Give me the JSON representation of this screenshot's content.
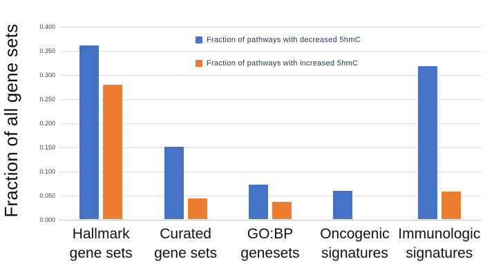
{
  "chart_data": {
    "type": "bar",
    "title": "",
    "xlabel": "",
    "ylabel": "Fraction of all gene sets",
    "categories": [
      "Hallmark\ngene sets",
      "Curated\ngene sets",
      "GO:BP\ngenesets",
      "Oncogenic\nsignatures",
      "Immunologic\nsignatures"
    ],
    "series": [
      {
        "name": "Fraction of pathways with decreased 5hmC",
        "color": "#4472C4",
        "values": [
          0.36,
          0.15,
          0.072,
          0.058,
          0.317
        ]
      },
      {
        "name": "Fraction of pathways with increased 5hmC",
        "color": "#ED7D31",
        "values": [
          0.278,
          0.043,
          0.035,
          0,
          0.057
        ]
      }
    ],
    "y_axis": {
      "min": 0,
      "max": 0.4,
      "tick_step": 0.05,
      "tick_labels": [
        "0.400",
        "0.350",
        "0.300",
        "0.250",
        "0.200",
        "0.150",
        "0.100",
        "0.050",
        "0.000"
      ],
      "grid": true
    },
    "legend_position": "inside-top-center",
    "style": {
      "gridline_color": "#dcdcdc",
      "axis_line_color": "#c2c2c2",
      "legend_text_color": "#1f3864",
      "tick_label_color": "#3d3d3d",
      "background": "#ffffff"
    }
  }
}
